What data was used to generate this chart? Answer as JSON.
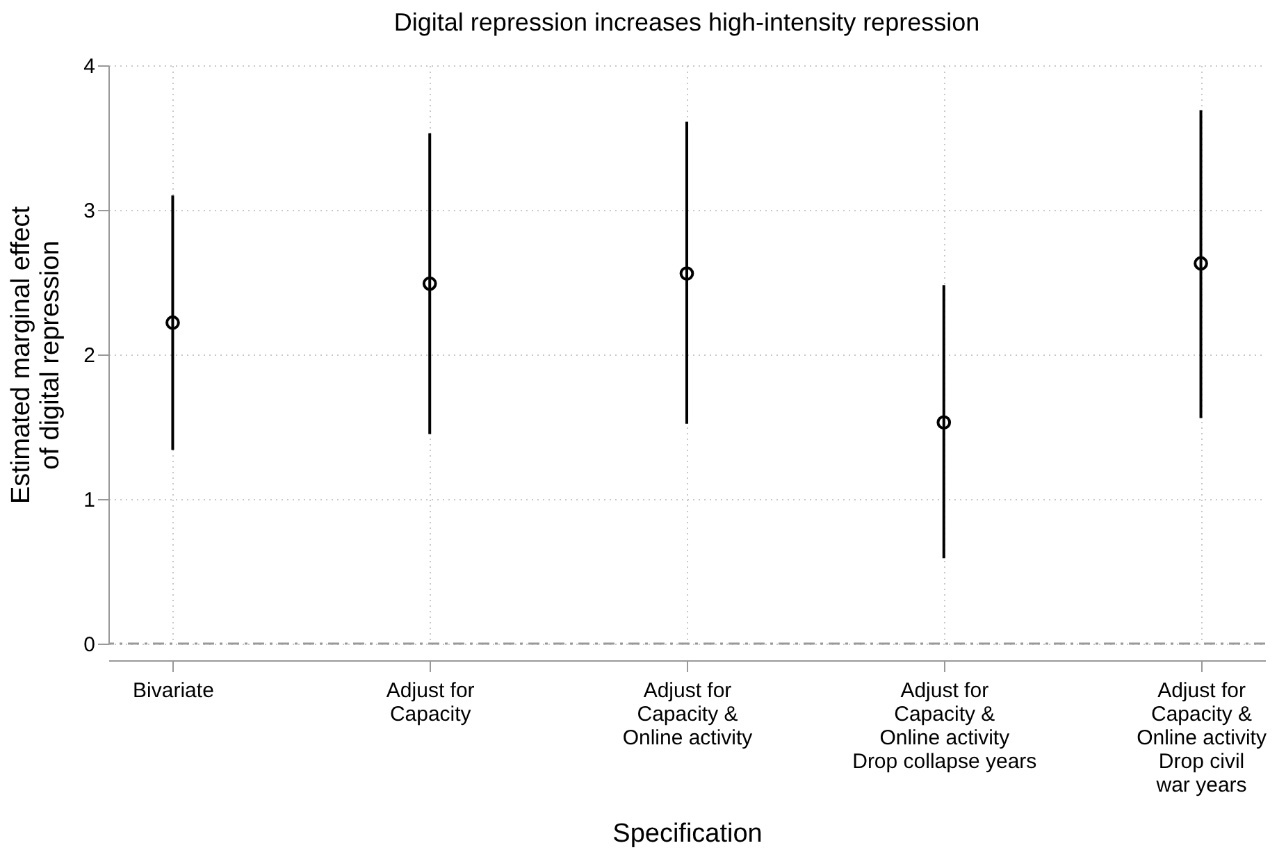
{
  "chart_data": {
    "type": "scatter",
    "title": "Digital repression increases high-intensity repression",
    "xlabel": "Specification",
    "ylabel": "Estimated marginal effect\nof digital repression",
    "categories": [
      "Bivariate",
      "Adjust for\nCapacity",
      "Adjust for\nCapacity &\nOnline activity",
      "Adjust for\nCapacity &\nOnline activity\nDrop collapse years",
      "Adjust for\nCapacity &\nOnline activity\nDrop civil\nwar years"
    ],
    "values": [
      2.22,
      2.49,
      2.56,
      1.53,
      2.63
    ],
    "errors": [
      [
        1.34,
        3.1
      ],
      [
        1.45,
        3.53
      ],
      [
        1.52,
        3.61
      ],
      [
        0.59,
        2.48
      ],
      [
        1.56,
        3.69
      ]
    ],
    "color": "#000000",
    "marker": "circle",
    "ylim": [
      0,
      4
    ],
    "yticks": [
      0,
      1,
      2,
      3,
      4
    ],
    "grid": true,
    "ref_lines": [
      {
        "axis": "y",
        "value": 0,
        "color": "#999999",
        "line_style": "dashed"
      }
    ]
  }
}
